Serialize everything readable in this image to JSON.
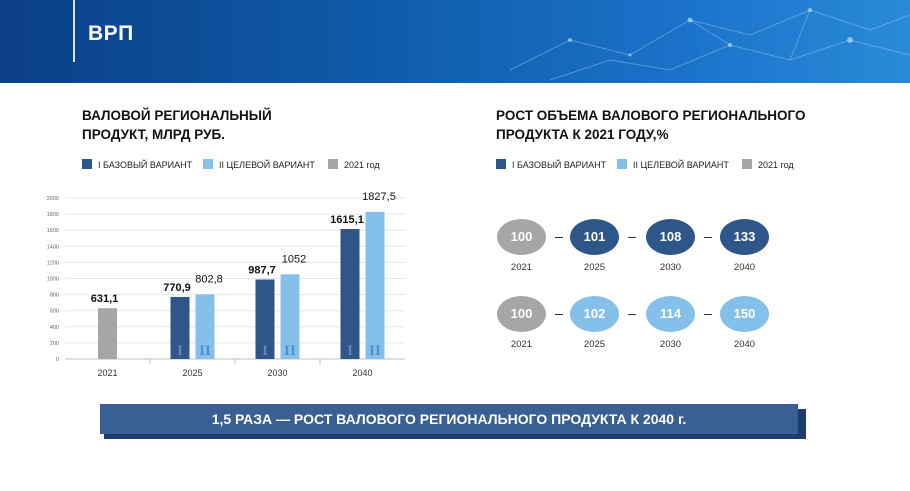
{
  "header": {
    "title": "ВРП"
  },
  "left": {
    "title_line1": "ВАЛОВОЙ РЕГИОНАЛЬНЫЙ",
    "title_line2": "ПРОДУКТ, МЛРД РУБ.",
    "legend": [
      "I БАЗОВЫЙ ВАРИАНТ",
      "II ЦЕЛЕВОЙ ВАРИАНТ",
      "2021 год"
    ]
  },
  "right": {
    "title_line1": "РОСТ ОБЪЕМА ВАЛОВОГО РЕГИОНАЛЬНОГО",
    "title_line2": "ПРОДУКТА К 2021 ГОДУ,%",
    "legend": [
      "I БАЗОВЫЙ ВАРИАНТ",
      "II ЦЕЛЕВОЙ ВАРИАНТ",
      "2021 год"
    ],
    "rows": [
      {
        "values": [
          "100",
          "101",
          "108",
          "133"
        ],
        "years": [
          "2021",
          "2025",
          "2030",
          "2040"
        ]
      },
      {
        "values": [
          "100",
          "102",
          "114",
          "150"
        ],
        "years": [
          "2021",
          "2025",
          "2030",
          "2040"
        ]
      }
    ]
  },
  "colors": {
    "base": "#2f5689",
    "target": "#85c0ea",
    "y2021": "#a6a6a6",
    "banner": "#3a5f92"
  },
  "banner": {
    "text": "1,5 РАЗА — РОСТ ВАЛОВОГО РЕГИОНАЛЬНОГО ПРОДУКТА К 2040 г."
  },
  "chart_data": {
    "type": "bar",
    "categories": [
      "2021",
      "2025",
      "2030",
      "2040"
    ],
    "series": [
      {
        "name": "2021 год",
        "values": [
          631.1,
          null,
          null,
          null
        ],
        "labels": [
          "631,1",
          "",
          "",
          ""
        ]
      },
      {
        "name": "I БАЗОВЫЙ ВАРИАНТ",
        "values": [
          null,
          770.9,
          987.7,
          1615.1
        ],
        "labels": [
          "",
          "770,9",
          "987,7",
          "1615,1"
        ],
        "bar_text": "I"
      },
      {
        "name": "II ЦЕЛЕВОЙ ВАРИАНТ",
        "values": [
          null,
          802.8,
          1052,
          1827.5
        ],
        "labels": [
          "",
          "802,8",
          "1052",
          "1827,5"
        ],
        "bar_text": "II"
      }
    ],
    "ylim": [
      0,
      2000
    ],
    "yticks": [
      0,
      200,
      400,
      600,
      800,
      1000,
      1200,
      1400,
      1600,
      1800,
      2000
    ],
    "grid": true
  }
}
